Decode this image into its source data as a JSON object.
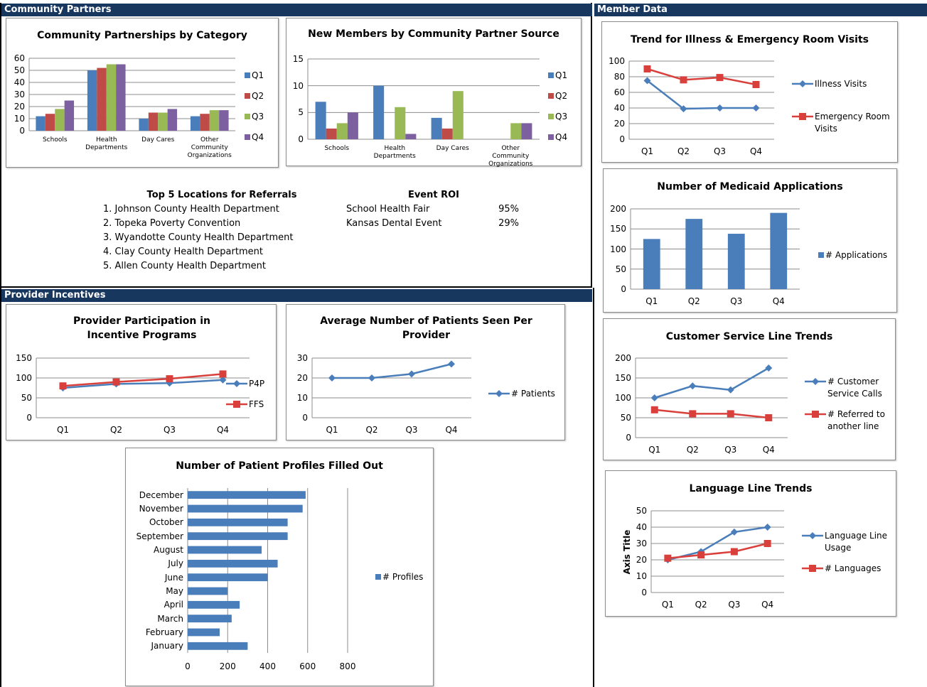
{
  "sections": [
    "Community Partners",
    "Provider Incentives",
    "Member Data"
  ],
  "referrals": {
    "title": "Top 5 Locations for Referrals",
    "items": [
      "1. Johnson County Health Department",
      "2. Topeka Poverty Convention",
      "3. Wyandotte County Health Department",
      "4. Clay County Health Department",
      "5. Allen County Health Department"
    ]
  },
  "event_roi": {
    "title": "Event ROI",
    "rows": [
      [
        "School Health Fair",
        "95%"
      ],
      [
        "Kansas Dental Event",
        "29%"
      ]
    ]
  },
  "chart_data": [
    {
      "type": "bar",
      "title": "Community Partnerships by Category",
      "categories": [
        "Schools",
        "Health Departments",
        "Day Cares",
        "Other Community Organizations"
      ],
      "series": [
        {
          "name": "Q1",
          "color": "#4a7ebb",
          "values": [
            12,
            50,
            10,
            12
          ]
        },
        {
          "name": "Q2",
          "color": "#be4b48",
          "values": [
            14,
            52,
            15,
            14
          ]
        },
        {
          "name": "Q3",
          "color": "#98b954",
          "values": [
            18,
            55,
            15,
            17
          ]
        },
        {
          "name": "Q4",
          "color": "#7d60a0",
          "values": [
            25,
            55,
            18,
            17
          ]
        }
      ],
      "ylim": [
        0,
        60
      ],
      "yticks": [
        0,
        10,
        20,
        30,
        40,
        50,
        60
      ],
      "grid": true,
      "legend": "right"
    },
    {
      "type": "bar",
      "title": "New Members by Community Partner Source",
      "categories": [
        "Schools",
        "Health Departments",
        "Day Cares",
        "Other Community Organizations"
      ],
      "series": [
        {
          "name": "Q1",
          "color": "#4a7ebb",
          "values": [
            7,
            10,
            4,
            0
          ]
        },
        {
          "name": "Q2",
          "color": "#be4b48",
          "values": [
            2,
            0,
            2,
            0
          ]
        },
        {
          "name": "Q3",
          "color": "#98b954",
          "values": [
            3,
            6,
            9,
            3
          ]
        },
        {
          "name": "Q4",
          "color": "#7d60a0",
          "values": [
            5,
            1,
            0,
            3
          ]
        }
      ],
      "ylim": [
        0,
        15
      ],
      "yticks": [
        0,
        5,
        10,
        15
      ],
      "grid": true,
      "legend": "right"
    },
    {
      "type": "line",
      "title": "Provider Participation in Incentive Programs",
      "categories": [
        "Q1",
        "Q2",
        "Q3",
        "Q4"
      ],
      "series": [
        {
          "name": "P4P",
          "color": "#4a7ebb",
          "marker": "diamond",
          "values": [
            75,
            85,
            87,
            95
          ]
        },
        {
          "name": "FFS",
          "color": "#d9403b",
          "marker": "square",
          "values": [
            80,
            90,
            98,
            110
          ]
        }
      ],
      "ylim": [
        0,
        150
      ],
      "yticks": [
        0,
        50,
        100,
        150
      ],
      "grid": true,
      "legend": "right"
    },
    {
      "type": "line",
      "title": "Average Number of Patients Seen Per Provider",
      "categories": [
        "Q1",
        "Q2",
        "Q3",
        "Q4"
      ],
      "series": [
        {
          "name": "# Patients",
          "color": "#4a7ebb",
          "marker": "diamond",
          "values": [
            20,
            20,
            22,
            27
          ]
        }
      ],
      "ylim": [
        0,
        30
      ],
      "yticks": [
        0,
        10,
        20,
        30
      ],
      "grid": true,
      "legend": "right"
    },
    {
      "type": "barh",
      "title": "Number of Patient Profiles Filled Out",
      "categories": [
        "January",
        "February",
        "March",
        "April",
        "May",
        "June",
        "July",
        "August",
        "September",
        "October",
        "November",
        "December"
      ],
      "series": [
        {
          "name": "# Profiles",
          "color": "#4a7ebb",
          "values": [
            300,
            160,
            220,
            260,
            200,
            400,
            450,
            370,
            500,
            500,
            575,
            590
          ]
        }
      ],
      "xlim": [
        0,
        800
      ],
      "xticks": [
        0,
        200,
        400,
        600,
        800
      ],
      "grid": true,
      "legend": "right"
    },
    {
      "type": "line",
      "title": "Trend for Illness & Emergency Room Visits",
      "categories": [
        "Q1",
        "Q2",
        "Q3",
        "Q4"
      ],
      "series": [
        {
          "name": "Illness Visits",
          "color": "#4a7ebb",
          "marker": "diamond",
          "values": [
            75,
            39,
            40,
            40
          ]
        },
        {
          "name": "Emergency Room Visits",
          "color": "#d9403b",
          "marker": "square",
          "values": [
            90,
            76,
            79,
            70
          ]
        }
      ],
      "ylim": [
        0,
        100
      ],
      "yticks": [
        0,
        20,
        40,
        60,
        80,
        100
      ],
      "grid": true,
      "legend": "right"
    },
    {
      "type": "bar",
      "title": "Number of Medicaid Applications",
      "categories": [
        "Q1",
        "Q2",
        "Q3",
        "Q4"
      ],
      "series": [
        {
          "name": "# Applications",
          "color": "#4a7ebb",
          "values": [
            125,
            175,
            138,
            190
          ]
        }
      ],
      "ylim": [
        0,
        200
      ],
      "yticks": [
        0,
        50,
        100,
        150,
        200
      ],
      "grid": true,
      "legend": "right"
    },
    {
      "type": "line",
      "title": "Customer Service Line Trends",
      "categories": [
        "Q1",
        "Q2",
        "Q3",
        "Q4"
      ],
      "series": [
        {
          "name": "# Customer Service Calls",
          "color": "#4a7ebb",
          "marker": "diamond",
          "values": [
            100,
            130,
            120,
            175
          ]
        },
        {
          "name": "# Referred to another line",
          "color": "#d9403b",
          "marker": "square",
          "values": [
            70,
            60,
            60,
            50
          ]
        }
      ],
      "ylim": [
        0,
        200
      ],
      "yticks": [
        0,
        50,
        100,
        150,
        200
      ],
      "grid": true,
      "legend": "right"
    },
    {
      "type": "line",
      "title": "Language Line Trends",
      "y_label": "Axis Title",
      "categories": [
        "Q1",
        "Q2",
        "Q3",
        "Q4"
      ],
      "series": [
        {
          "name": "Language Line Usage",
          "color": "#4a7ebb",
          "marker": "diamond",
          "values": [
            20,
            25,
            37,
            40
          ]
        },
        {
          "name": "# Languages",
          "color": "#d9403b",
          "marker": "square",
          "values": [
            21,
            23,
            25,
            30
          ]
        }
      ],
      "ylim": [
        0,
        50
      ],
      "yticks": [
        0,
        10,
        20,
        30,
        40,
        50
      ],
      "grid": true,
      "legend": "right"
    }
  ]
}
